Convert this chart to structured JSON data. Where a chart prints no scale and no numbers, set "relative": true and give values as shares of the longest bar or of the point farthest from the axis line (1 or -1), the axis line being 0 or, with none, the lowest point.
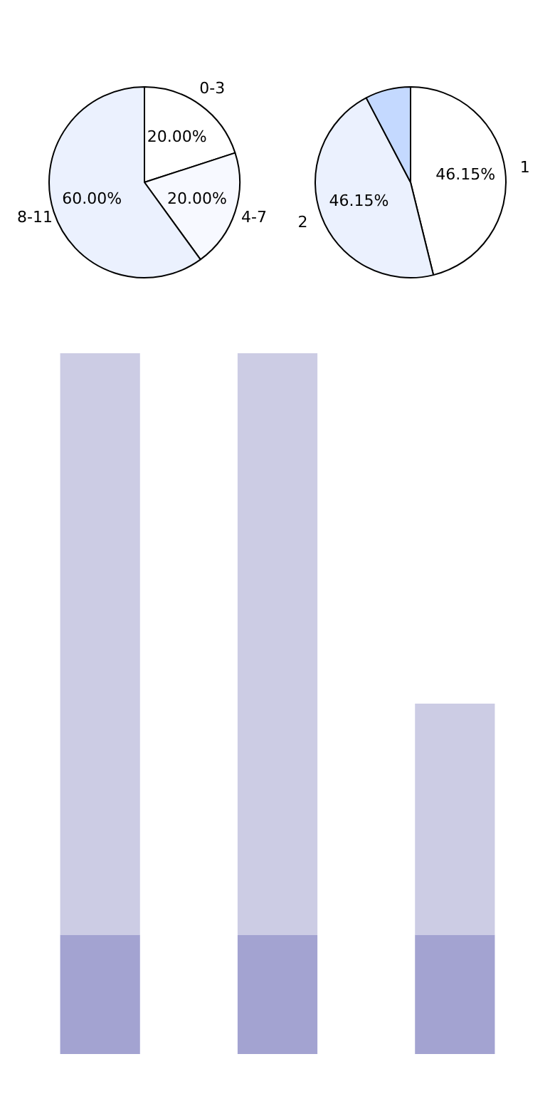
{
  "chart_data": [
    {
      "type": "pie",
      "categories": [
        "0-3",
        "4-7",
        "8-11"
      ],
      "values": [
        20,
        20,
        60
      ],
      "colors": [
        "#ffffff",
        "#f7f9ff",
        "#ebf1fe"
      ],
      "value_labels": [
        "20.00%",
        "20.00%",
        "60.00%"
      ]
    },
    {
      "type": "pie",
      "categories": [
        "1",
        "2",
        null
      ],
      "values": [
        46.15,
        46.15,
        7.7
      ],
      "colors": [
        "#ffffff",
        "#ebf1fe",
        "#c4d9ff"
      ],
      "value_labels": [
        "46.15%",
        "46.15%",
        null
      ]
    },
    {
      "type": "bar",
      "relative": true,
      "stacked": true,
      "categories": [
        null,
        null,
        null
      ],
      "series": [
        {
          "color": "#a3a3d1",
          "values": [
            0.17,
            0.17,
            0.17
          ]
        },
        {
          "color": "#cccce4",
          "values": [
            0.83,
            0.83,
            0.33
          ]
        }
      ]
    }
  ]
}
